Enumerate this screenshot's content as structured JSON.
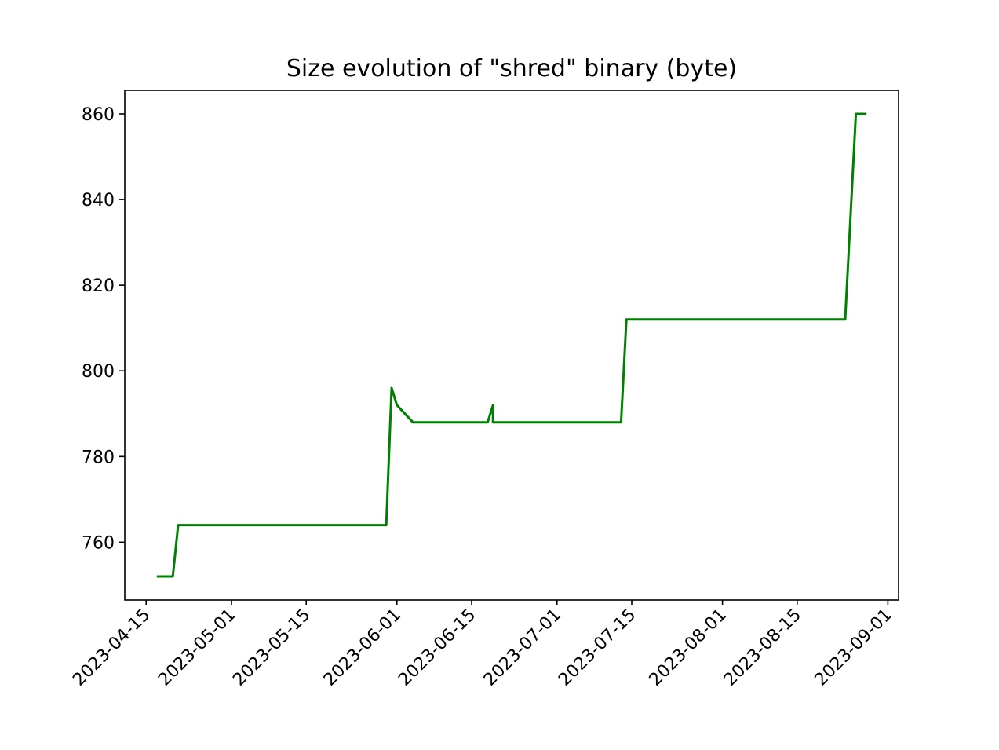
{
  "chart_data": {
    "type": "line",
    "title": "Size evolution of \"shred\" binary (byte)",
    "xlabel": "",
    "ylabel": "",
    "x_axis_type": "date",
    "xlim": [
      "2023-04-11",
      "2023-09-03"
    ],
    "ylim": [
      746.5,
      865.5
    ],
    "x_ticks": [
      "2023-04-15",
      "2023-05-01",
      "2023-05-15",
      "2023-06-01",
      "2023-06-15",
      "2023-07-01",
      "2023-07-15",
      "2023-08-01",
      "2023-08-15",
      "2023-09-01"
    ],
    "y_ticks": [
      760,
      780,
      800,
      820,
      840,
      860
    ],
    "grid": false,
    "legend": "none",
    "series": [
      {
        "color": "#008000",
        "points": [
          {
            "x": "2023-04-17",
            "y": 752
          },
          {
            "x": "2023-04-20",
            "y": 752
          },
          {
            "x": "2023-04-21",
            "y": 764
          },
          {
            "x": "2023-05-30",
            "y": 764
          },
          {
            "x": "2023-05-31",
            "y": 796
          },
          {
            "x": "2023-06-01",
            "y": 792
          },
          {
            "x": "2023-06-04",
            "y": 788
          },
          {
            "x": "2023-06-18",
            "y": 788
          },
          {
            "x": "2023-06-19",
            "y": 792
          },
          {
            "x": "2023-06-19",
            "y": 788
          },
          {
            "x": "2023-07-13",
            "y": 788
          },
          {
            "x": "2023-07-14",
            "y": 812
          },
          {
            "x": "2023-08-24",
            "y": 812
          },
          {
            "x": "2023-08-26",
            "y": 860
          },
          {
            "x": "2023-08-28",
            "y": 860
          }
        ]
      }
    ]
  }
}
